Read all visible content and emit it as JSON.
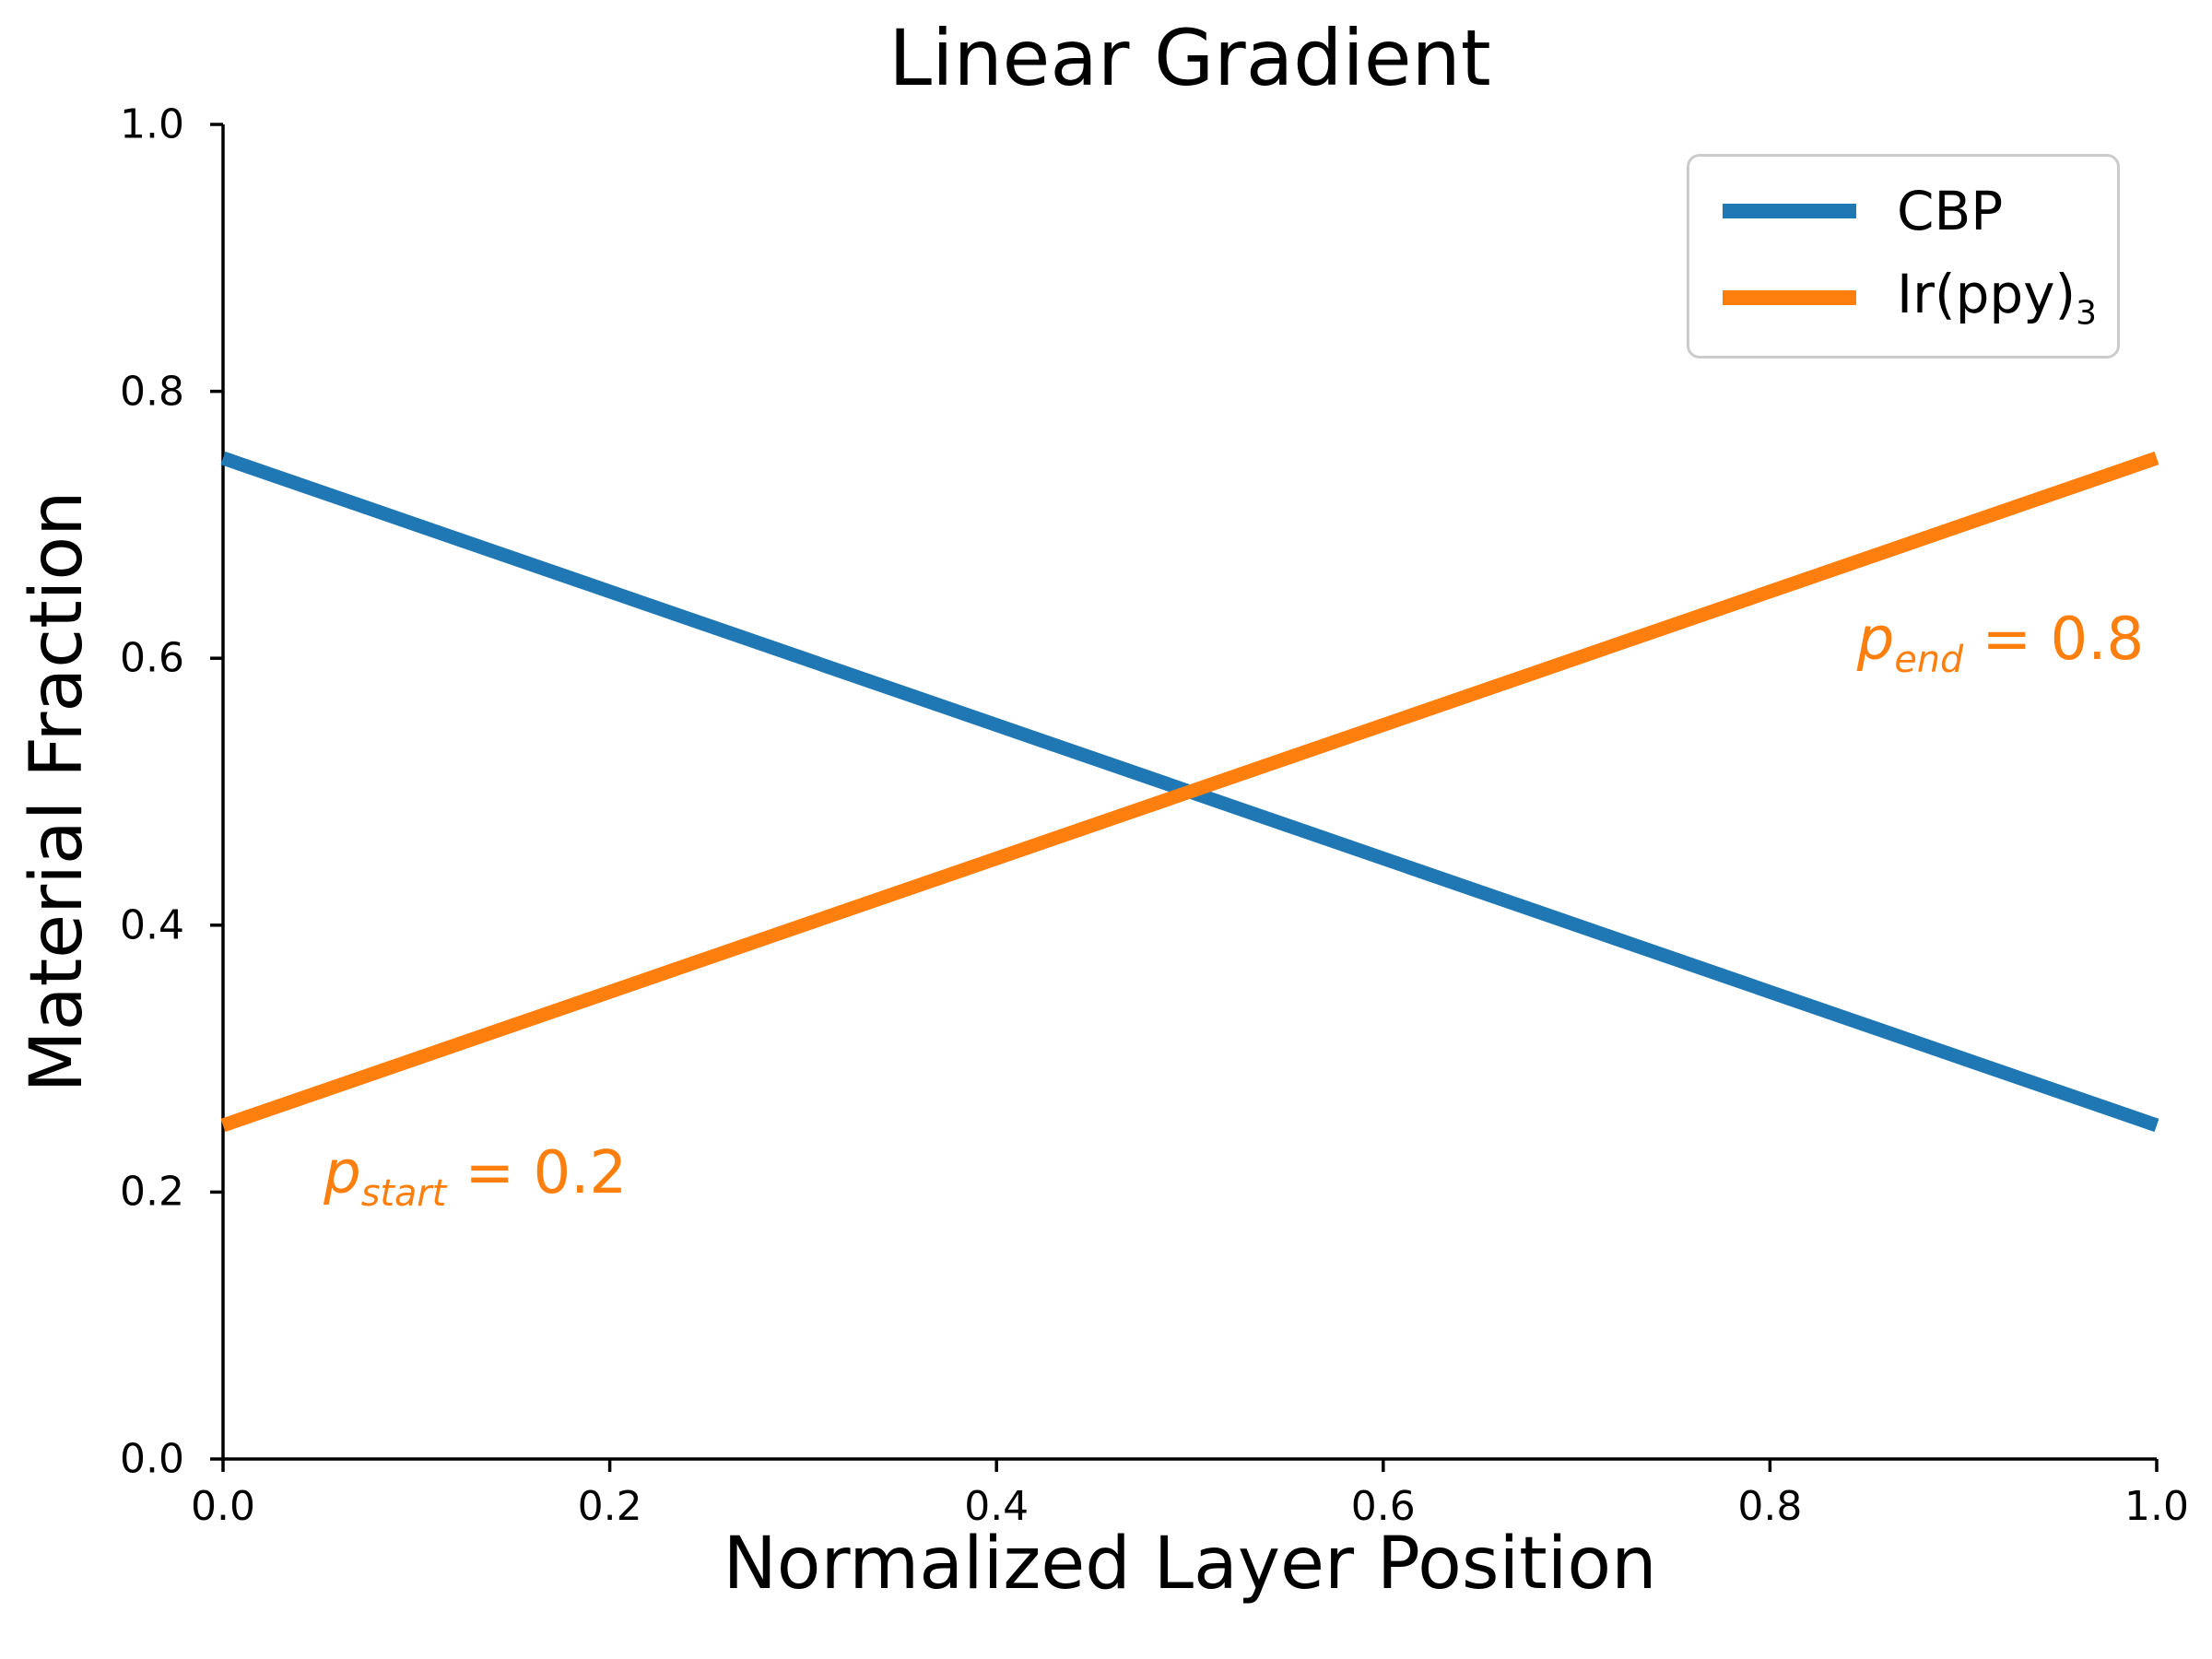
{
  "chart_data": {
    "type": "line",
    "title": "Linear Gradient",
    "xlabel": "Normalized Layer Position",
    "ylabel": "Material Fraction",
    "xlim": [
      0.0,
      1.0
    ],
    "ylim": [
      0.0,
      1.0
    ],
    "x_ticks": [
      0.0,
      0.2,
      0.4,
      0.6,
      0.8,
      1.0
    ],
    "x_tick_labels": [
      "0.0",
      "0.2",
      "0.4",
      "0.6",
      "0.8",
      "1.0"
    ],
    "y_ticks": [
      0.0,
      0.2,
      0.4,
      0.6,
      0.8,
      1.0
    ],
    "y_tick_labels": [
      "0.0",
      "0.2",
      "0.4",
      "0.6",
      "0.8",
      "1.0"
    ],
    "grid": false,
    "spines": [
      "left",
      "bottom"
    ],
    "series": [
      {
        "name": "CBP",
        "color": "#1f77b4",
        "x": [
          0.0,
          1.0
        ],
        "y": [
          0.75,
          0.25
        ]
      },
      {
        "name": "Ir(ppy)3",
        "color": "#ff7f0e",
        "x": [
          0.0,
          1.0
        ],
        "y": [
          0.25,
          0.75
        ]
      }
    ],
    "legend": {
      "position": "upper right",
      "items": [
        {
          "label": "CBP",
          "sub": "",
          "color": "#1f77b4"
        },
        {
          "label": "Ir(ppy)",
          "sub": "3",
          "color": "#ff7f0e"
        }
      ]
    },
    "annotations": [
      {
        "symbol": "p",
        "sub": "start",
        "rest": " = 0.2",
        "color": "#ff7f0e",
        "x": 0.052,
        "y": 0.211
      },
      {
        "symbol": "p",
        "sub": "end",
        "rest": " = 0.8",
        "color": "#ff7f0e",
        "x": 0.845,
        "y": 0.611
      }
    ]
  }
}
